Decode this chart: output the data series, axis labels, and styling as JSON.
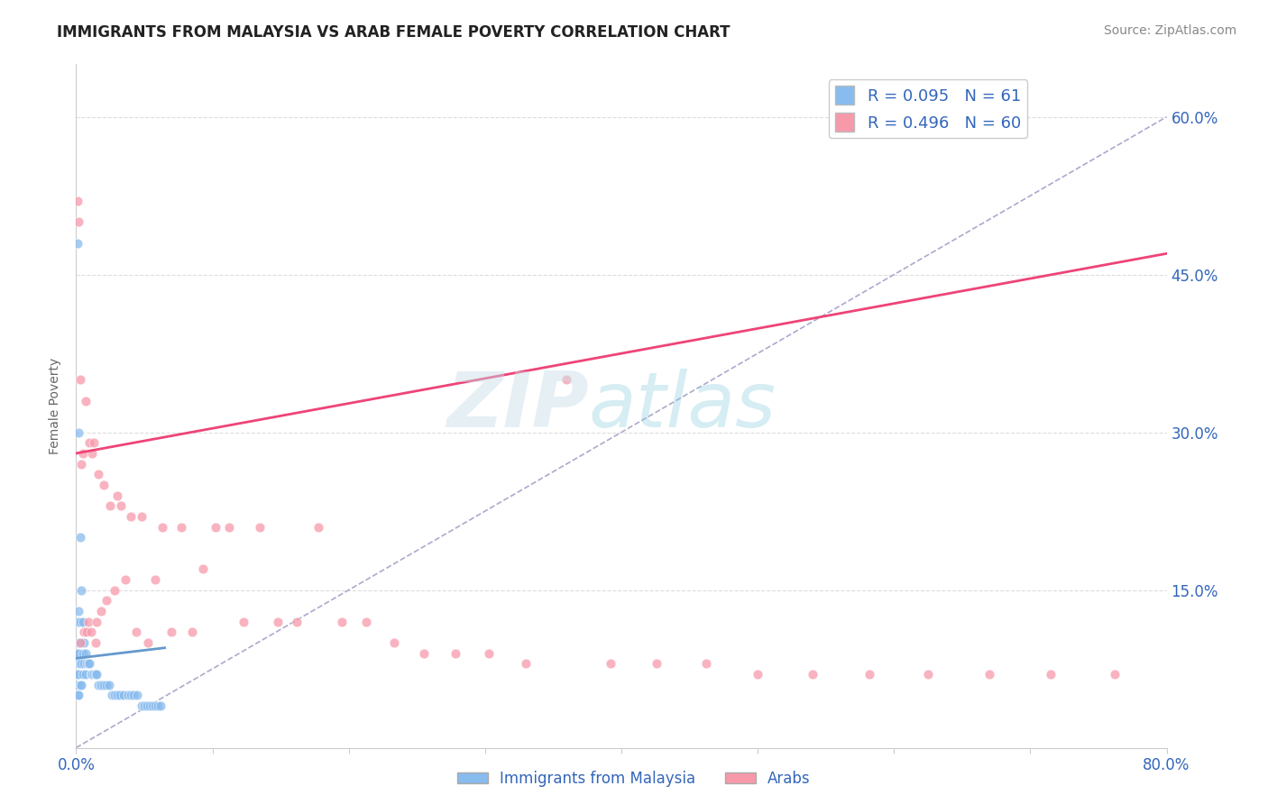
{
  "title": "IMMIGRANTS FROM MALAYSIA VS ARAB FEMALE POVERTY CORRELATION CHART",
  "source_text": "Source: ZipAtlas.com",
  "ylabel": "Female Poverty",
  "legend_label_1": "Immigrants from Malaysia",
  "legend_label_2": "Arabs",
  "r1": 0.095,
  "n1": 61,
  "r2": 0.496,
  "n2": 60,
  "color1": "#88bbee",
  "color2": "#f899aa",
  "trend1_color": "#6699cc",
  "trend2_color": "#ee4477",
  "ref_line_color": "#aaaacc",
  "xlim": [
    0.0,
    0.8
  ],
  "ylim": [
    0.0,
    0.65
  ],
  "watermark_text": "ZIPatlas",
  "scatter1_x": [
    0.001,
    0.001,
    0.001,
    0.001,
    0.001,
    0.001,
    0.001,
    0.001,
    0.002,
    0.002,
    0.002,
    0.002,
    0.002,
    0.002,
    0.002,
    0.003,
    0.003,
    0.003,
    0.003,
    0.003,
    0.004,
    0.004,
    0.004,
    0.004,
    0.005,
    0.005,
    0.005,
    0.006,
    0.006,
    0.007,
    0.007,
    0.008,
    0.009,
    0.01,
    0.011,
    0.012,
    0.013,
    0.014,
    0.015,
    0.016,
    0.018,
    0.02,
    0.022,
    0.024,
    0.026,
    0.028,
    0.03,
    0.032,
    0.035,
    0.038,
    0.04,
    0.042,
    0.045,
    0.048,
    0.05,
    0.052,
    0.054,
    0.056,
    0.058,
    0.06,
    0.062
  ],
  "scatter1_y": [
    0.48,
    0.12,
    0.1,
    0.09,
    0.08,
    0.07,
    0.06,
    0.05,
    0.3,
    0.13,
    0.1,
    0.09,
    0.08,
    0.07,
    0.05,
    0.2,
    0.12,
    0.1,
    0.08,
    0.06,
    0.15,
    0.1,
    0.08,
    0.06,
    0.12,
    0.09,
    0.07,
    0.1,
    0.08,
    0.09,
    0.07,
    0.08,
    0.08,
    0.08,
    0.07,
    0.07,
    0.07,
    0.07,
    0.07,
    0.06,
    0.06,
    0.06,
    0.06,
    0.06,
    0.05,
    0.05,
    0.05,
    0.05,
    0.05,
    0.05,
    0.05,
    0.05,
    0.05,
    0.04,
    0.04,
    0.04,
    0.04,
    0.04,
    0.04,
    0.04,
    0.04
  ],
  "scatter2_x": [
    0.001,
    0.002,
    0.003,
    0.003,
    0.004,
    0.005,
    0.006,
    0.007,
    0.008,
    0.009,
    0.01,
    0.011,
    0.012,
    0.013,
    0.014,
    0.015,
    0.016,
    0.018,
    0.02,
    0.022,
    0.025,
    0.028,
    0.03,
    0.033,
    0.036,
    0.04,
    0.044,
    0.048,
    0.053,
    0.058,
    0.063,
    0.07,
    0.077,
    0.085,
    0.093,
    0.102,
    0.112,
    0.123,
    0.135,
    0.148,
    0.162,
    0.178,
    0.195,
    0.213,
    0.233,
    0.255,
    0.278,
    0.303,
    0.33,
    0.36,
    0.392,
    0.426,
    0.462,
    0.5,
    0.54,
    0.582,
    0.625,
    0.67,
    0.715,
    0.762
  ],
  "scatter2_y": [
    0.52,
    0.5,
    0.35,
    0.1,
    0.27,
    0.28,
    0.11,
    0.33,
    0.11,
    0.12,
    0.29,
    0.11,
    0.28,
    0.29,
    0.1,
    0.12,
    0.26,
    0.13,
    0.25,
    0.14,
    0.23,
    0.15,
    0.24,
    0.23,
    0.16,
    0.22,
    0.11,
    0.22,
    0.1,
    0.16,
    0.21,
    0.11,
    0.21,
    0.11,
    0.17,
    0.21,
    0.21,
    0.12,
    0.21,
    0.12,
    0.12,
    0.21,
    0.12,
    0.12,
    0.1,
    0.09,
    0.09,
    0.09,
    0.08,
    0.35,
    0.08,
    0.08,
    0.08,
    0.07,
    0.07,
    0.07,
    0.07,
    0.07,
    0.07,
    0.07
  ],
  "trend1_x": [
    0.0,
    0.065
  ],
  "trend1_y": [
    0.085,
    0.095
  ],
  "trend2_x": [
    0.0,
    0.8
  ],
  "trend2_y": [
    0.28,
    0.47
  ],
  "ref_line_x": [
    0.0,
    0.8
  ],
  "ref_line_y": [
    0.0,
    0.6
  ]
}
